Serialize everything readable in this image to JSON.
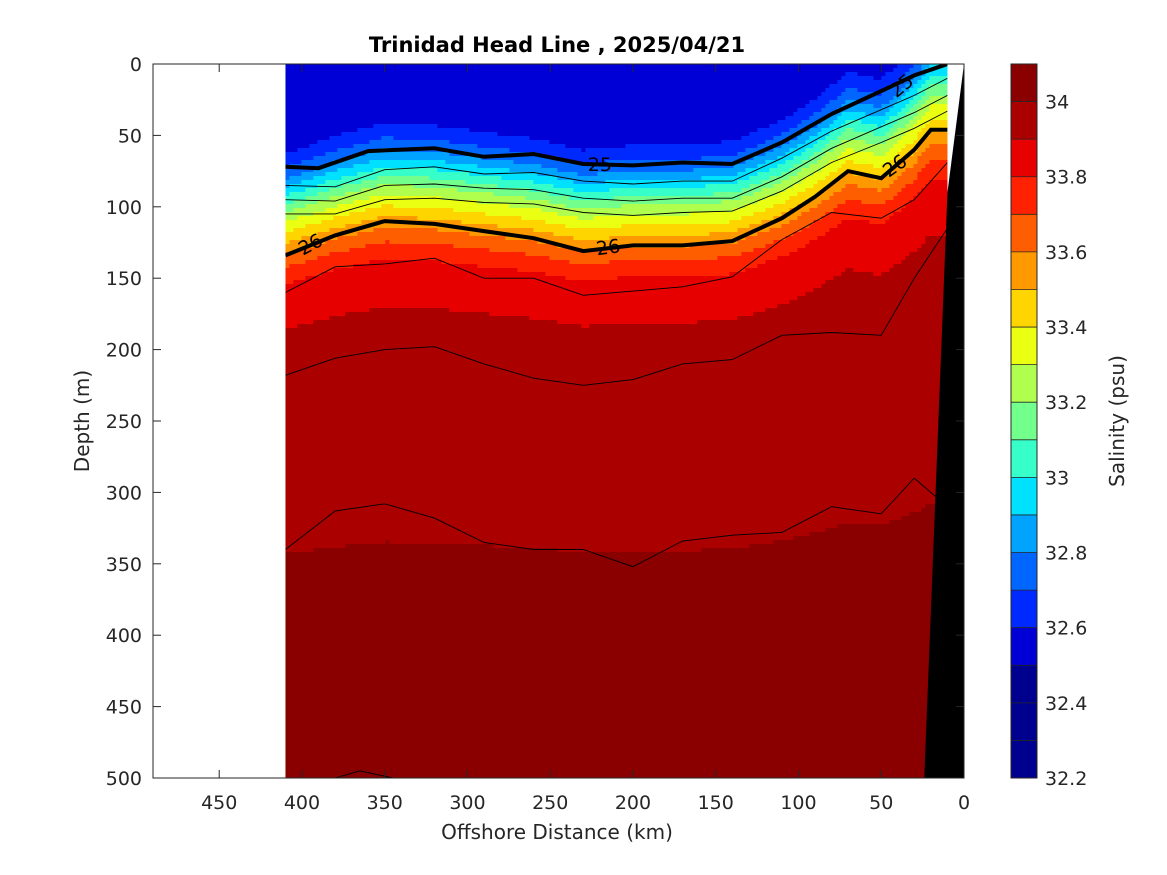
{
  "chart_data": {
    "type": "heatmap",
    "title": "Trinidad Head Line , 2025/04/21",
    "xlabel": "Offshore Distance (km)",
    "ylabel": "Depth (m)",
    "colorbar_label": "Salinity (psu)",
    "xlim": [
      490,
      0
    ],
    "ylim": [
      500,
      0
    ],
    "x_ticks": [
      450,
      400,
      350,
      300,
      250,
      200,
      150,
      100,
      50,
      0
    ],
    "y_ticks": [
      0,
      50,
      100,
      150,
      200,
      250,
      300,
      350,
      400,
      450,
      500
    ],
    "colorbar_ticks": [
      32.2,
      32.4,
      32.6,
      32.8,
      33,
      33.2,
      33.4,
      33.6,
      33.8,
      34
    ],
    "colorbar_range": [
      32.2,
      34.1
    ],
    "data_extent_km": [
      410,
      10
    ],
    "salinity_profile": {
      "depths": [
        0,
        55,
        70,
        85,
        100,
        115,
        130,
        150,
        180,
        220,
        280,
        340,
        400,
        450,
        500
      ],
      "values": [
        32.55,
        32.6,
        32.75,
        33.0,
        33.25,
        33.45,
        33.65,
        33.82,
        33.9,
        33.94,
        33.97,
        34.0,
        34.05,
        34.08,
        34.1
      ],
      "reference_depth_isopycnal_26": 125
    },
    "isopycnal_25": {
      "x": [
        410,
        390,
        360,
        320,
        290,
        260,
        230,
        200,
        170,
        140,
        110,
        80,
        50,
        30,
        10
      ],
      "depth": [
        72,
        73,
        61,
        59,
        65,
        63,
        70,
        71,
        69,
        70,
        55,
        35,
        19,
        8,
        0
      ],
      "label": "25"
    },
    "isopycnal_26": {
      "x": [
        410,
        380,
        350,
        320,
        290,
        260,
        230,
        200,
        170,
        140,
        110,
        90,
        70,
        50,
        30,
        20,
        10
      ],
      "depth": [
        134,
        120,
        110,
        112,
        117,
        122,
        131,
        127,
        127,
        124,
        108,
        93,
        75,
        80,
        60,
        46,
        46
      ],
      "label": "26"
    },
    "thin_contours": [
      {
        "x": [
          410,
          380,
          350,
          320,
          290,
          260,
          230,
          200,
          170,
          140,
          110,
          80,
          50,
          30,
          10
        ],
        "depth": [
          85,
          86,
          74,
          72,
          77,
          76,
          82,
          84,
          82,
          82,
          66,
          47,
          32,
          22,
          10
        ]
      },
      {
        "x": [
          410,
          380,
          350,
          320,
          290,
          260,
          230,
          200,
          170,
          140,
          110,
          80,
          50,
          30,
          10
        ],
        "depth": [
          95,
          96,
          85,
          84,
          87,
          88,
          94,
          96,
          94,
          94,
          79,
          59,
          44,
          34,
          22
        ]
      },
      {
        "x": [
          410,
          380,
          350,
          320,
          290,
          260,
          230,
          200,
          170,
          140,
          110,
          80,
          50,
          30,
          10
        ],
        "depth": [
          105,
          105,
          95,
          94,
          97,
          98,
          104,
          106,
          104,
          103,
          89,
          69,
          55,
          45,
          33
        ]
      },
      {
        "x": [
          410,
          380,
          350,
          320,
          290,
          260,
          230,
          200,
          170,
          140,
          110,
          80,
          50,
          30,
          10
        ],
        "depth": [
          160,
          142,
          140,
          136,
          150,
          150,
          162,
          159,
          156,
          149,
          123,
          104,
          108,
          95,
          69
        ]
      },
      {
        "x": [
          410,
          380,
          350,
          320,
          290,
          260,
          230,
          200,
          170,
          140,
          110,
          80,
          50,
          30,
          10
        ],
        "depth": [
          218,
          206,
          200,
          198,
          210,
          220,
          225,
          221,
          210,
          207,
          190,
          188,
          190,
          150,
          115
        ]
      },
      {
        "x": [
          410,
          380,
          350,
          320,
          290,
          260,
          230,
          200,
          170,
          140,
          110,
          80,
          50,
          30,
          10
        ],
        "depth": [
          340,
          313,
          308,
          318,
          335,
          340,
          340,
          352,
          334,
          330,
          328,
          310,
          315,
          290,
          310
        ]
      },
      {
        "x": [
          380,
          365,
          345
        ],
        "depth": [
          500,
          495,
          500
        ]
      }
    ]
  }
}
